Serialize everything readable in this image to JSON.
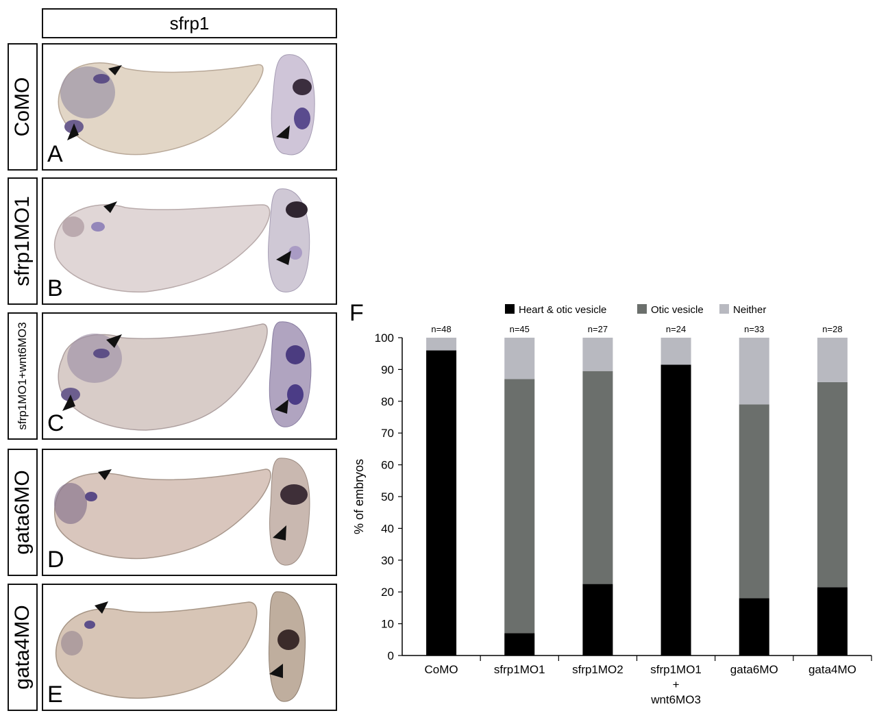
{
  "header": {
    "gene": "sfrp1"
  },
  "rows": [
    {
      "label": "CoMO",
      "letter": "A"
    },
    {
      "label": "sfrp1MO1",
      "letter": "B"
    },
    {
      "label": "sfrp1MO1+wnt6MO3",
      "letter": "C"
    },
    {
      "label": "gata6MO",
      "letter": "D"
    },
    {
      "label": "gata4MO",
      "letter": "E"
    }
  ],
  "chart_panel_letter": "F",
  "colors": {
    "heart_otic": "#000000",
    "otic": "#6b6f6c",
    "neither": "#b8b9c0"
  },
  "chart_data": {
    "type": "bar",
    "stacked": true,
    "categories": [
      "CoMO",
      "sfrp1MO1",
      "sfrp1MO2",
      "sfrp1MO1 + wnt6MO3",
      "gata6MO",
      "gata4MO"
    ],
    "category_lines": [
      [
        "CoMO"
      ],
      [
        "sfrp1MO1"
      ],
      [
        "sfrp1MO2"
      ],
      [
        "sfrp1MO1",
        "+",
        "wnt6MO3"
      ],
      [
        "gata6MO"
      ],
      [
        "gata4MO"
      ]
    ],
    "n_labels": [
      "n=48",
      "n=45",
      "n=27",
      "n=24",
      "n=33",
      "n=28"
    ],
    "series": [
      {
        "name": "Heart & otic vesicle",
        "values": [
          96,
          7,
          22.5,
          91.5,
          18,
          21.5
        ]
      },
      {
        "name": "Otic vesicle",
        "values": [
          0,
          80,
          67,
          0,
          61,
          64.5
        ]
      },
      {
        "name": "Neither",
        "values": [
          4,
          13,
          10.5,
          8.5,
          21,
          14
        ]
      }
    ],
    "ylabel": "% of embryos",
    "ylim": [
      0,
      100
    ],
    "yticks": [
      0,
      10,
      20,
      30,
      40,
      50,
      60,
      70,
      80,
      90,
      100
    ],
    "legend_position": "top"
  }
}
